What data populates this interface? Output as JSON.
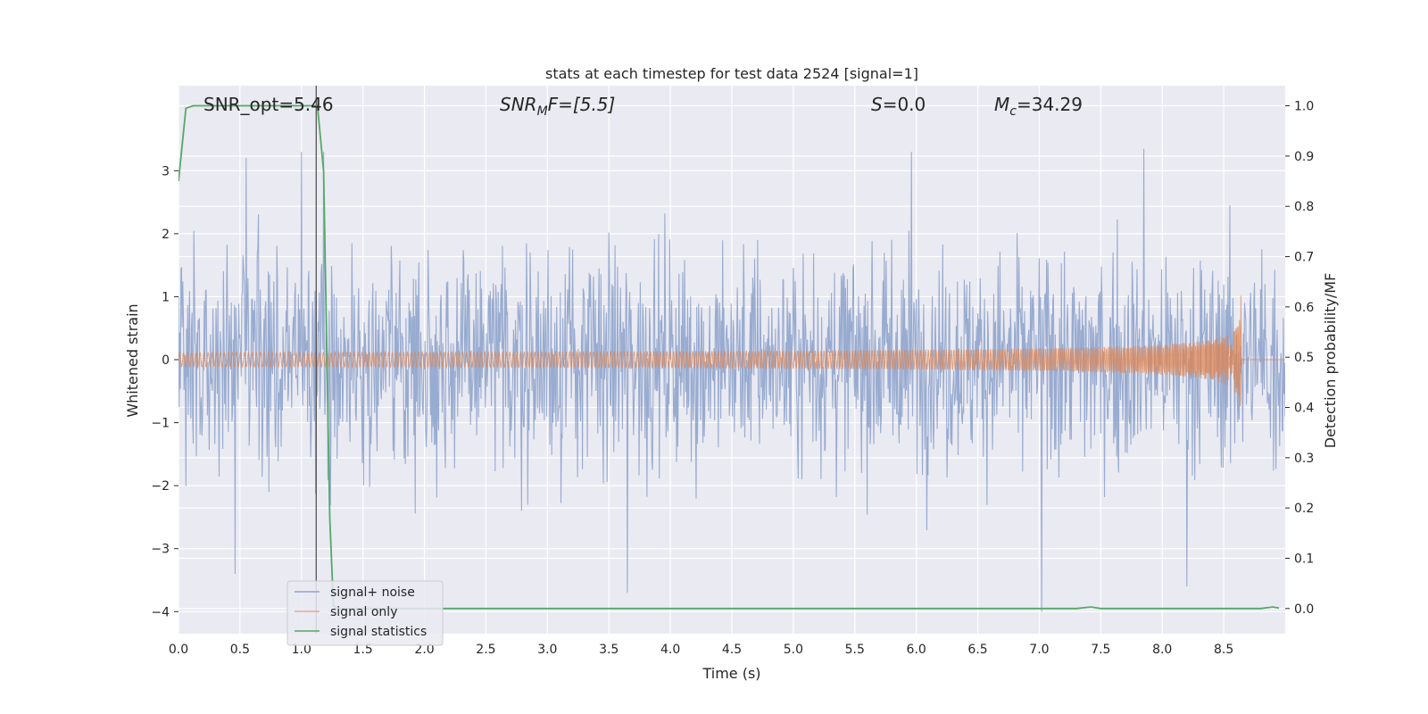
{
  "chart_data": {
    "type": "line",
    "title": "stats at each timestep for test data 2524 [signal=1]",
    "xlabel": "Time (s)",
    "ylabel": "Whitened strain",
    "y2label": "Detection probability/MF",
    "xlim": [
      0.0,
      9.0
    ],
    "ylim": [
      -4.35,
      4.35
    ],
    "y2lim": [
      -0.05,
      1.04
    ],
    "x_ticks": [
      "0.0",
      "0.5",
      "1.0",
      "1.5",
      "2.0",
      "2.5",
      "3.0",
      "3.5",
      "4.0",
      "4.5",
      "5.0",
      "5.5",
      "6.0",
      "6.5",
      "7.0",
      "7.5",
      "8.0",
      "8.5"
    ],
    "y_ticks": [
      "3",
      "2",
      "1",
      "0",
      "−1",
      "−2",
      "−3",
      "−4"
    ],
    "y2_ticks": [
      "1.0",
      "0.9",
      "0.8",
      "0.7",
      "0.6",
      "0.5",
      "0.4",
      "0.3",
      "0.2",
      "0.1",
      "0.0"
    ],
    "grid": true,
    "annotations": {
      "snr_opt": "SNR_opt=5.46",
      "snr_mf_base": "SNR",
      "snr_mf_sub": "M",
      "snr_mf_rest": "F=[5.5]",
      "s_var": "S",
      "s_rest": "=0.0",
      "mc_base": "M",
      "mc_sub": "c",
      "mc_rest": "=34.29"
    },
    "vertical_marker_x": 1.12,
    "legend": {
      "placement": "lower-left",
      "entries": [
        "signal+ noise",
        "signal only",
        "signal statistics"
      ]
    },
    "series": [
      {
        "name": "signal+ noise",
        "axis": "left",
        "color": "#8fa4cc",
        "kind": "dense-noise",
        "approx_std": 1.0,
        "samples_shown": 1800,
        "peak_values": [
          {
            "x": 0.55,
            "y": 3.2
          },
          {
            "x": 1.0,
            "y": 3.3
          },
          {
            "x": 1.18,
            "y": 3.3
          },
          {
            "x": 0.46,
            "y": -3.4
          },
          {
            "x": 3.65,
            "y": -3.7
          },
          {
            "x": 7.02,
            "y": -4.0
          },
          {
            "x": 7.85,
            "y": 3.35
          },
          {
            "x": 8.2,
            "y": -3.6
          },
          {
            "x": 5.96,
            "y": 3.3
          }
        ]
      },
      {
        "name": "signal only",
        "axis": "left",
        "color": "#dd8452",
        "kind": "chirp",
        "amplitude_start": 0.01,
        "amplitude_peak": 1.3,
        "merger_time": 8.64,
        "ringdown_end": 8.66
      },
      {
        "name": "signal statistics",
        "axis": "right",
        "color": "#55a868",
        "x": [
          0.0,
          0.06,
          0.12,
          0.3,
          0.6,
          0.9,
          1.1,
          1.13,
          1.18,
          1.23,
          1.26,
          1.3,
          2.0,
          3.0,
          4.0,
          5.0,
          6.0,
          7.0,
          7.3,
          7.42,
          7.5,
          7.6,
          8.0,
          8.5,
          8.8,
          8.9,
          8.95
        ],
        "values": [
          0.85,
          0.995,
          1.0,
          1.0,
          1.0,
          1.0,
          1.0,
          1.0,
          0.87,
          0.18,
          0.005,
          0.0,
          0.0,
          0.0,
          0.0,
          0.0,
          0.0,
          0.0,
          0.0,
          0.003,
          0.0,
          0.0,
          0.0,
          0.0,
          0.0,
          0.003,
          0.001
        ]
      }
    ]
  }
}
